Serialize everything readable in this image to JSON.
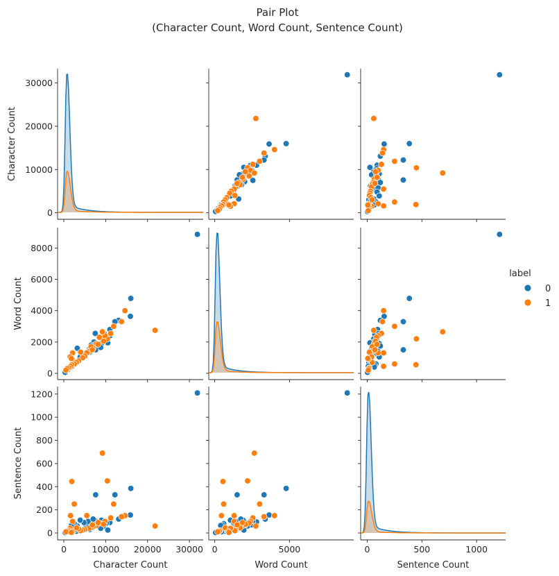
{
  "chart_data": {
    "type": "scatter",
    "title": [
      "Pair Plot",
      "(Character Count, Word Count, Sentence Count)"
    ],
    "variables": [
      "Character Count",
      "Word Count",
      "Sentence Count"
    ],
    "ticks": {
      "Character Count": {
        "values": [
          0,
          10000,
          20000,
          30000
        ],
        "labels": [
          "0",
          "10000",
          "20000",
          "30000"
        ],
        "range": [
          -1500,
          33300
        ]
      },
      "Word Count": {
        "values": [
          0,
          2000,
          4000,
          6000,
          8000
        ],
        "labels": [
          "0",
          "2000",
          "4000",
          "6000",
          "8000"
        ],
        "range": [
          -400,
          9300
        ],
        "x_values": [
          0,
          5000
        ],
        "x_labels": [
          "0",
          "5000"
        ]
      },
      "Sentence Count": {
        "values": [
          0,
          200,
          400,
          600,
          800,
          1000,
          1200
        ],
        "labels": [
          "0",
          "200",
          "400",
          "600",
          "800",
          "1000",
          "1200"
        ],
        "range": [
          -60,
          1265
        ],
        "x_values": [
          0,
          500,
          1000
        ],
        "x_labels": [
          "0",
          "500",
          "1000"
        ]
      }
    },
    "legend": {
      "title": "label",
      "entries": [
        "0",
        "1"
      ],
      "colors": [
        "#1f77b4",
        "#ff7f0e"
      ],
      "placement": "right"
    },
    "series": [
      {
        "name": "0",
        "color": "#1f77b4",
        "points": [
          [
            31900,
            8870,
            1210
          ],
          [
            16000,
            4780,
            385
          ],
          [
            15900,
            3640,
            155
          ],
          [
            13100,
            3380,
            120
          ],
          [
            12200,
            3300,
            330
          ],
          [
            11000,
            2800,
            95
          ],
          [
            11000,
            2400,
            90
          ],
          [
            10200,
            2150,
            85
          ],
          [
            9800,
            2480,
            70
          ],
          [
            9500,
            2200,
            60
          ],
          [
            9000,
            1900,
            110
          ],
          [
            8200,
            1700,
            80
          ],
          [
            7500,
            2550,
            105
          ],
          [
            7600,
            1500,
            330
          ],
          [
            7200,
            2000,
            60
          ],
          [
            6800,
            1600,
            45
          ],
          [
            6500,
            1800,
            60
          ],
          [
            6000,
            1500,
            70
          ],
          [
            5500,
            1300,
            55
          ],
          [
            5000,
            1200,
            40
          ],
          [
            4500,
            1100,
            30
          ],
          [
            4200,
            1000,
            25
          ],
          [
            3800,
            900,
            20
          ],
          [
            3500,
            800,
            35
          ],
          [
            3200,
            1600,
            60
          ],
          [
            3000,
            700,
            15
          ],
          [
            2800,
            650,
            30
          ],
          [
            2500,
            600,
            80
          ],
          [
            2200,
            500,
            70
          ],
          [
            2000,
            450,
            10
          ],
          [
            1800,
            400,
            65
          ],
          [
            1500,
            350,
            20
          ],
          [
            1200,
            300,
            15
          ],
          [
            900,
            200,
            10
          ],
          [
            600,
            150,
            8
          ],
          [
            400,
            100,
            5
          ],
          [
            300,
            60,
            3
          ],
          [
            5800,
            1400,
            100
          ],
          [
            8800,
            1650,
            40
          ],
          [
            10500,
            1950,
            25
          ],
          [
            4800,
            1250,
            90
          ],
          [
            3900,
            1050,
            110
          ],
          [
            7000,
            1750,
            120
          ],
          [
            6200,
            1350,
            30
          ]
        ]
      },
      {
        "name": "1",
        "color": "#ff7f0e",
        "points": [
          [
            21800,
            2750,
            60
          ],
          [
            14600,
            4000,
            150
          ],
          [
            11900,
            3000,
            250
          ],
          [
            10400,
            2200,
            450
          ],
          [
            11200,
            2550,
            130
          ],
          [
            9800,
            2400,
            100
          ],
          [
            9200,
            2650,
            690
          ],
          [
            8500,
            2300,
            85
          ],
          [
            7800,
            1900,
            65
          ],
          [
            7000,
            1600,
            55
          ],
          [
            6500,
            1700,
            45
          ],
          [
            6000,
            1400,
            40
          ],
          [
            5500,
            1300,
            150
          ],
          [
            5000,
            1100,
            30
          ],
          [
            4500,
            1000,
            25
          ],
          [
            4000,
            1350,
            20
          ],
          [
            3500,
            800,
            35
          ],
          [
            3000,
            700,
            45
          ],
          [
            2500,
            600,
            250
          ],
          [
            2100,
            1300,
            100
          ],
          [
            1900,
            550,
            445
          ],
          [
            1600,
            450,
            150
          ],
          [
            1500,
            1050,
            40
          ],
          [
            1200,
            350,
            20
          ],
          [
            800,
            300,
            15
          ],
          [
            500,
            200,
            10
          ],
          [
            2000,
            900,
            12
          ],
          [
            1800,
            950,
            5
          ],
          [
            13800,
            3300,
            140
          ],
          [
            9500,
            2050,
            75
          ],
          [
            8200,
            1850,
            90
          ],
          [
            6800,
            1500,
            70
          ]
        ]
      }
    ],
    "kde": {
      "Character Count": {
        "peak0": 31500,
        "peak1": 9300,
        "mode": 700
      },
      "Word Count": {
        "peak0": 8800,
        "peak1": 3200,
        "mode": 140
      },
      "Sentence Count": {
        "peak0": 1195,
        "peak1": 270,
        "mode": 9
      }
    }
  }
}
